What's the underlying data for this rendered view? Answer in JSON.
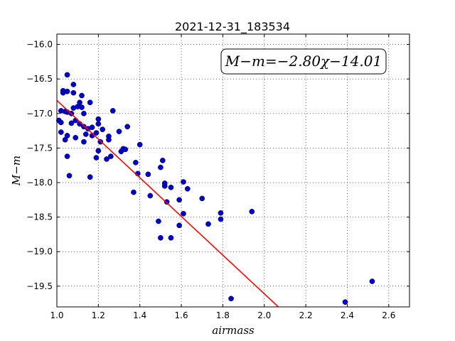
{
  "chart_data": {
    "type": "scatter",
    "title": "2021-12-31_183534",
    "xlabel": "airmass",
    "ylabel": "M−m",
    "xlim": [
      1.0,
      2.7
    ],
    "ylim": [
      -19.8,
      -15.85
    ],
    "y_inverted": true,
    "grid": true,
    "x_ticks": [
      1.0,
      1.2,
      1.4,
      1.6,
      1.8,
      2.0,
      2.2,
      2.4,
      2.6
    ],
    "x_tick_labels": [
      "1.0",
      "1.2",
      "1.4",
      "1.6",
      "1.8",
      "2.0",
      "2.2",
      "2.4",
      "2.6"
    ],
    "y_ticks": [
      -16.0,
      -16.5,
      -17.0,
      -17.5,
      -18.0,
      -18.5,
      -19.0,
      -19.5
    ],
    "y_tick_labels": [
      "−16.0",
      "−16.5",
      "−17.0",
      "−17.5",
      "−18.0",
      "−18.5",
      "−19.0",
      "−19.5"
    ],
    "annotation": "M−m=−2.80χ−14.01",
    "annotation_position": "top-right",
    "fit": {
      "slope": -2.8,
      "intercept": -14.01,
      "color": "#ff0000",
      "x_range": [
        1.0,
        2.7
      ]
    },
    "series": [
      {
        "color": "#0000cc",
        "points": [
          [
            1.01,
            -17.1
          ],
          [
            1.02,
            -17.13
          ],
          [
            1.02,
            -17.27
          ],
          [
            1.02,
            -16.96
          ],
          [
            1.03,
            -16.7
          ],
          [
            1.03,
            -16.67
          ],
          [
            1.04,
            -16.97
          ],
          [
            1.04,
            -17.38
          ],
          [
            1.05,
            -17.62
          ],
          [
            1.05,
            -16.68
          ],
          [
            1.05,
            -16.98
          ],
          [
            1.05,
            -17.32
          ],
          [
            1.06,
            -17.9
          ],
          [
            1.05,
            -16.44
          ],
          [
            1.07,
            -17.14
          ],
          [
            1.07,
            -17.0
          ],
          [
            1.08,
            -16.7
          ],
          [
            1.08,
            -16.58
          ],
          [
            1.08,
            -16.92
          ],
          [
            1.09,
            -17.35
          ],
          [
            1.09,
            -17.1
          ],
          [
            1.1,
            -16.9
          ],
          [
            1.11,
            -16.84
          ],
          [
            1.11,
            -17.15
          ],
          [
            1.12,
            -16.74
          ],
          [
            1.12,
            -16.91
          ],
          [
            1.13,
            -17.0
          ],
          [
            1.13,
            -17.19
          ],
          [
            1.13,
            -17.41
          ],
          [
            1.14,
            -17.3
          ],
          [
            1.15,
            -17.22
          ],
          [
            1.16,
            -17.92
          ],
          [
            1.16,
            -16.84
          ],
          [
            1.17,
            -17.2
          ],
          [
            1.17,
            -17.32
          ],
          [
            1.19,
            -17.28
          ],
          [
            1.19,
            -17.64
          ],
          [
            1.2,
            -17.54
          ],
          [
            1.2,
            -17.15
          ],
          [
            1.2,
            -17.08
          ],
          [
            1.21,
            -17.41
          ],
          [
            1.22,
            -17.23
          ],
          [
            1.24,
            -17.66
          ],
          [
            1.25,
            -17.33
          ],
          [
            1.25,
            -17.38
          ],
          [
            1.26,
            -17.62
          ],
          [
            1.27,
            -16.96
          ],
          [
            1.3,
            -17.26
          ],
          [
            1.31,
            -17.55
          ],
          [
            1.32,
            -17.51
          ],
          [
            1.33,
            -17.52
          ],
          [
            1.34,
            -17.19
          ],
          [
            1.37,
            -18.14
          ],
          [
            1.38,
            -17.71
          ],
          [
            1.39,
            -17.87
          ],
          [
            1.4,
            -17.45
          ],
          [
            1.44,
            -17.88
          ],
          [
            1.45,
            -18.19
          ],
          [
            1.49,
            -18.56
          ],
          [
            1.5,
            -17.78
          ],
          [
            1.5,
            -18.8
          ],
          [
            1.51,
            -17.68
          ],
          [
            1.52,
            -18.05
          ],
          [
            1.52,
            -18.01
          ],
          [
            1.53,
            -18.28
          ],
          [
            1.55,
            -18.8
          ],
          [
            1.55,
            -18.07
          ],
          [
            1.59,
            -18.25
          ],
          [
            1.59,
            -18.62
          ],
          [
            1.61,
            -18.45
          ],
          [
            1.61,
            -17.99
          ],
          [
            1.63,
            -18.09
          ],
          [
            1.7,
            -18.23
          ],
          [
            1.73,
            -18.6
          ],
          [
            1.79,
            -18.44
          ],
          [
            1.79,
            -18.53
          ],
          [
            1.84,
            -19.68
          ],
          [
            1.94,
            -18.42
          ],
          [
            2.39,
            -19.73
          ],
          [
            2.52,
            -19.43
          ]
        ]
      }
    ]
  }
}
